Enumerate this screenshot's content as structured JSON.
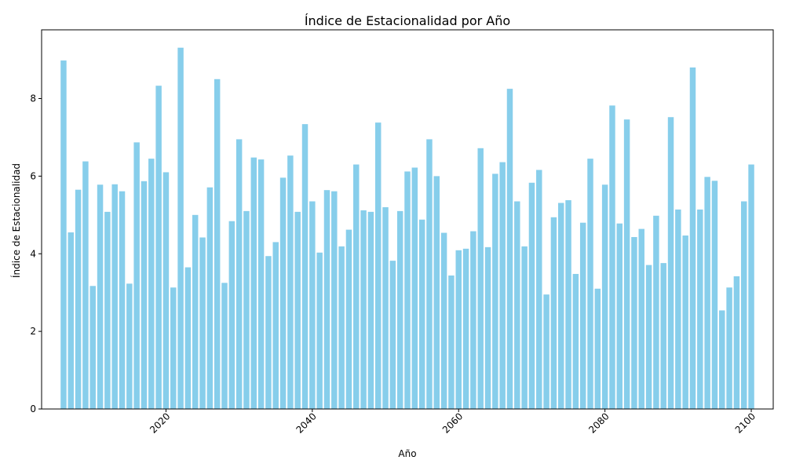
{
  "chart_data": {
    "type": "bar",
    "title": "Índice de Estacionalidad por Año",
    "xlabel": "Año",
    "ylabel": "Índice de Estacionalidad",
    "x": [
      2006,
      2007,
      2008,
      2009,
      2010,
      2011,
      2012,
      2013,
      2014,
      2015,
      2016,
      2017,
      2018,
      2019,
      2020,
      2021,
      2022,
      2023,
      2024,
      2025,
      2026,
      2027,
      2028,
      2029,
      2030,
      2031,
      2032,
      2033,
      2034,
      2035,
      2036,
      2037,
      2038,
      2039,
      2040,
      2041,
      2042,
      2043,
      2044,
      2045,
      2046,
      2047,
      2048,
      2049,
      2050,
      2051,
      2052,
      2053,
      2054,
      2055,
      2056,
      2057,
      2058,
      2059,
      2060,
      2061,
      2062,
      2063,
      2064,
      2065,
      2066,
      2067,
      2068,
      2069,
      2070,
      2071,
      2072,
      2073,
      2074,
      2075,
      2076,
      2077,
      2078,
      2079,
      2080,
      2081,
      2082,
      2083,
      2084,
      2085,
      2086,
      2087,
      2088,
      2089,
      2090,
      2091,
      2092,
      2093,
      2094,
      2095,
      2096,
      2097,
      2098,
      2099,
      2100
    ],
    "values": [
      8.98,
      4.55,
      5.65,
      6.38,
      3.17,
      5.78,
      5.08,
      5.79,
      5.61,
      3.23,
      6.87,
      5.87,
      6.45,
      8.33,
      6.1,
      3.13,
      9.31,
      3.65,
      5.0,
      4.42,
      5.71,
      8.5,
      3.25,
      4.84,
      6.95,
      5.1,
      6.48,
      6.43,
      3.94,
      4.3,
      5.96,
      6.53,
      5.08,
      7.34,
      5.35,
      4.03,
      5.64,
      5.61,
      4.19,
      4.62,
      6.3,
      5.12,
      5.08,
      7.38,
      5.2,
      3.82,
      5.1,
      6.12,
      6.22,
      4.88,
      6.95,
      6.0,
      4.54,
      3.44,
      4.09,
      4.13,
      4.58,
      6.72,
      4.17,
      6.06,
      6.36,
      8.25,
      5.35,
      4.19,
      5.83,
      6.16,
      2.95,
      4.94,
      5.31,
      5.38,
      3.48,
      4.8,
      6.45,
      3.1,
      5.78,
      7.82,
      4.78,
      7.46,
      4.43,
      4.64,
      3.71,
      4.98,
      3.76,
      7.52,
      5.14,
      4.47,
      8.8,
      5.14,
      5.98,
      5.88,
      2.54,
      3.13,
      3.42,
      5.35,
      6.3
    ],
    "xticks": [
      2020,
      2040,
      2060,
      2080,
      2100
    ],
    "yticks": [
      0,
      2,
      4,
      6,
      8
    ],
    "xlim": [
      2003.0,
      2103.0
    ],
    "ylim": [
      0,
      9.77
    ],
    "bar_color": "#87ceeb",
    "grid": false
  }
}
